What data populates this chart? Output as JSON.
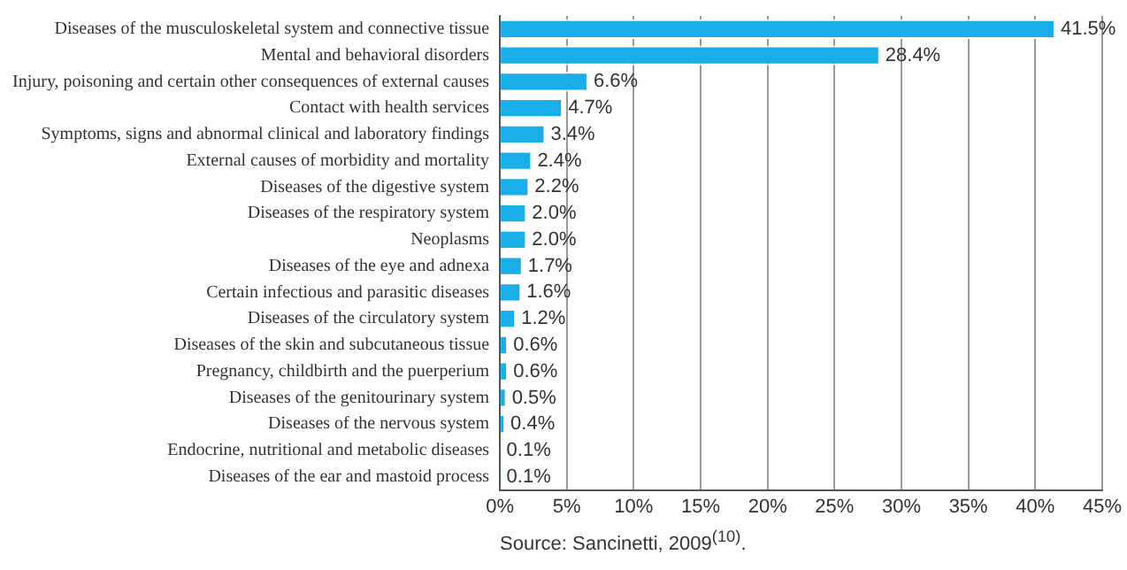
{
  "chart_data": {
    "type": "bar",
    "orientation": "horizontal",
    "categories": [
      "Diseases of the musculoskeletal system and connective tissue",
      "Mental and behavioral disorders",
      "Injury, poisoning and certain other consequences of external causes",
      "Contact with health services",
      "Symptoms, signs and abnormal clinical and laboratory findings",
      "External causes of morbidity and mortality",
      "Diseases of the digestive system",
      "Diseases of the respiratory system",
      "Neoplasms",
      "Diseases of the eye and adnexa",
      "Certain infectious and parasitic diseases",
      "Diseases of the circulatory system",
      "Diseases of the skin and subcutaneous tissue",
      "Pregnancy, childbirth and the puerperium",
      "Diseases of the genitourinary system",
      "Diseases of the nervous system",
      "Endocrine, nutritional and metabolic diseases",
      "Diseases of the ear and mastoid process"
    ],
    "values": [
      41.5,
      28.4,
      6.6,
      4.7,
      3.4,
      2.4,
      2.2,
      2.0,
      2.0,
      1.7,
      1.6,
      1.2,
      0.6,
      0.6,
      0.5,
      0.4,
      0.1,
      0.1
    ],
    "value_labels": [
      "41.5%",
      "28.4%",
      "6.6%",
      "4.7%",
      "3.4%",
      "2.4%",
      "2.2%",
      "2.0%",
      "2.0%",
      "1.7%",
      "1.6%",
      "1.2%",
      "0.6%",
      "0.6%",
      "0.5%",
      "0.4%",
      "0.1%",
      "0.1%"
    ],
    "color": "#1aaee8",
    "xlim": [
      0,
      45
    ],
    "xticks": [
      {
        "value": 0,
        "label": "0%"
      },
      {
        "value": 5,
        "label": "5%"
      },
      {
        "value": 10,
        "label": "10%"
      },
      {
        "value": 15,
        "label": "15%"
      },
      {
        "value": 20,
        "label": "20%"
      },
      {
        "value": 25,
        "label": "25%"
      },
      {
        "value": 30,
        "label": "30%"
      },
      {
        "value": 35,
        "label": "35%"
      },
      {
        "value": 40,
        "label": "40%"
      },
      {
        "value": 45,
        "label": "45%"
      }
    ],
    "grid": "x",
    "annotations": [
      "Source: Sancinetti, 2009$^{(10)}$."
    ]
  }
}
